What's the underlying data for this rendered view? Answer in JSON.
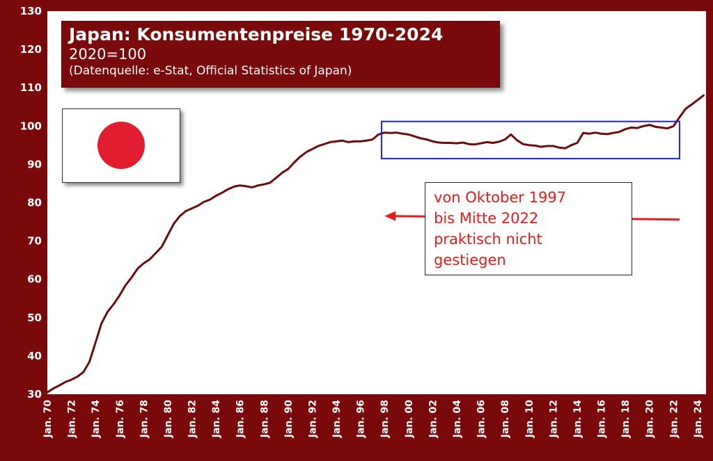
{
  "title": {
    "main": "Japan: Konsumentenpreise 1970-2024",
    "sub": "2020=100",
    "source": "(Datenquelle: e-Stat, Official Statistics of Japan)"
  },
  "note": {
    "lines": [
      "von Oktober 1997",
      "bis Mitte 2022",
      "praktisch nicht",
      "gestiegen"
    ]
  },
  "colors": {
    "frame": "#7a0a0a",
    "line": "#6b0c0c",
    "highlight_box": "#1f1fe0",
    "note_text": "#e41b1b",
    "arrow": "#e41b1b",
    "flag_disc": "#e01e30"
  },
  "flag_icon": "japan-flag-icon",
  "chart_data": {
    "type": "line",
    "title": "Japan: Konsumentenpreise 1970-2024",
    "subtitle": "2020=100",
    "xlabel": "",
    "ylabel": "",
    "xlim": [
      1970.0,
      2024.7
    ],
    "ylim": [
      30,
      130
    ],
    "yticks": [
      30,
      40,
      50,
      60,
      70,
      80,
      90,
      100,
      110,
      120,
      130
    ],
    "xticks": [
      {
        "x": 1970,
        "label": "Jan. 70"
      },
      {
        "x": 1972,
        "label": "Jan. 72"
      },
      {
        "x": 1974,
        "label": "Jan. 74"
      },
      {
        "x": 1976,
        "label": "Jan. 76"
      },
      {
        "x": 1978,
        "label": "Jan. 78"
      },
      {
        "x": 1980,
        "label": "Jan. 80"
      },
      {
        "x": 1982,
        "label": "Jan. 82"
      },
      {
        "x": 1984,
        "label": "Jan. 84"
      },
      {
        "x": 1986,
        "label": "Jan. 86"
      },
      {
        "x": 1988,
        "label": "Jan. 88"
      },
      {
        "x": 1990,
        "label": "Jan. 90"
      },
      {
        "x": 1992,
        "label": "Jan. 92"
      },
      {
        "x": 1994,
        "label": "Jan. 94"
      },
      {
        "x": 1996,
        "label": "Jan. 96"
      },
      {
        "x": 1998,
        "label": "Jan. 98"
      },
      {
        "x": 2000,
        "label": "Jan. 00"
      },
      {
        "x": 2002,
        "label": "Jan. 02"
      },
      {
        "x": 2004,
        "label": "Jan. 04"
      },
      {
        "x": 2006,
        "label": "Jan. 06"
      },
      {
        "x": 2008,
        "label": "Jan. 08"
      },
      {
        "x": 2010,
        "label": "Jan. 10"
      },
      {
        "x": 2012,
        "label": "Jan. 12"
      },
      {
        "x": 2014,
        "label": "Jan. 14"
      },
      {
        "x": 2016,
        "label": "Jan. 16"
      },
      {
        "x": 2018,
        "label": "Jan. 18"
      },
      {
        "x": 2020,
        "label": "Jan. 20"
      },
      {
        "x": 2022,
        "label": "Jan. 22"
      },
      {
        "x": 2024,
        "label": "Jan. 24"
      }
    ],
    "grid": false,
    "series": [
      {
        "values_xy": [
          [
            1970.0,
            30.5
          ],
          [
            1970.5,
            31.5
          ],
          [
            1971.0,
            32.3
          ],
          [
            1971.5,
            33.2
          ],
          [
            1972.0,
            33.8
          ],
          [
            1972.5,
            34.6
          ],
          [
            1973.0,
            35.8
          ],
          [
            1973.5,
            38.5
          ],
          [
            1974.0,
            43.5
          ],
          [
            1974.5,
            48.5
          ],
          [
            1975.0,
            51.5
          ],
          [
            1975.5,
            53.5
          ],
          [
            1976.0,
            55.8
          ],
          [
            1976.5,
            58.5
          ],
          [
            1977.0,
            60.5
          ],
          [
            1977.5,
            62.8
          ],
          [
            1978.0,
            64.2
          ],
          [
            1978.5,
            65.2
          ],
          [
            1979.0,
            66.8
          ],
          [
            1979.5,
            68.5
          ],
          [
            1980.0,
            71.5
          ],
          [
            1980.5,
            74.5
          ],
          [
            1981.0,
            76.5
          ],
          [
            1981.5,
            77.8
          ],
          [
            1982.0,
            78.5
          ],
          [
            1982.5,
            79.2
          ],
          [
            1983.0,
            80.2
          ],
          [
            1983.5,
            80.8
          ],
          [
            1984.0,
            81.8
          ],
          [
            1984.5,
            82.6
          ],
          [
            1985.0,
            83.5
          ],
          [
            1985.5,
            84.2
          ],
          [
            1986.0,
            84.5
          ],
          [
            1986.5,
            84.3
          ],
          [
            1987.0,
            84.0
          ],
          [
            1987.5,
            84.5
          ],
          [
            1988.0,
            84.8
          ],
          [
            1988.5,
            85.2
          ],
          [
            1989.0,
            86.5
          ],
          [
            1989.5,
            87.8
          ],
          [
            1990.0,
            88.8
          ],
          [
            1990.5,
            90.5
          ],
          [
            1991.0,
            92.0
          ],
          [
            1991.5,
            93.2
          ],
          [
            1992.0,
            94.0
          ],
          [
            1992.5,
            94.8
          ],
          [
            1993.0,
            95.3
          ],
          [
            1993.5,
            95.8
          ],
          [
            1994.0,
            96.0
          ],
          [
            1994.5,
            96.2
          ],
          [
            1995.0,
            95.8
          ],
          [
            1995.5,
            96.0
          ],
          [
            1996.0,
            96.0
          ],
          [
            1996.5,
            96.2
          ],
          [
            1997.0,
            96.5
          ],
          [
            1997.5,
            97.8
          ],
          [
            1998.0,
            98.3
          ],
          [
            1998.5,
            98.2
          ],
          [
            1999.0,
            98.3
          ],
          [
            1999.5,
            98.0
          ],
          [
            2000.0,
            97.8
          ],
          [
            2000.5,
            97.3
          ],
          [
            2001.0,
            96.8
          ],
          [
            2001.5,
            96.5
          ],
          [
            2002.0,
            96.0
          ],
          [
            2002.5,
            95.7
          ],
          [
            2003.0,
            95.6
          ],
          [
            2003.5,
            95.6
          ],
          [
            2004.0,
            95.5
          ],
          [
            2004.5,
            95.7
          ],
          [
            2005.0,
            95.3
          ],
          [
            2005.5,
            95.2
          ],
          [
            2006.0,
            95.5
          ],
          [
            2006.5,
            95.8
          ],
          [
            2007.0,
            95.6
          ],
          [
            2007.5,
            95.9
          ],
          [
            2008.0,
            96.5
          ],
          [
            2008.5,
            97.8
          ],
          [
            2009.0,
            96.3
          ],
          [
            2009.5,
            95.3
          ],
          [
            2010.0,
            95.0
          ],
          [
            2010.5,
            94.9
          ],
          [
            2011.0,
            94.6
          ],
          [
            2011.5,
            94.8
          ],
          [
            2012.0,
            94.8
          ],
          [
            2012.5,
            94.4
          ],
          [
            2013.0,
            94.2
          ],
          [
            2013.5,
            95.0
          ],
          [
            2014.0,
            95.6
          ],
          [
            2014.5,
            98.2
          ],
          [
            2015.0,
            98.0
          ],
          [
            2015.5,
            98.3
          ],
          [
            2016.0,
            98.0
          ],
          [
            2016.5,
            97.9
          ],
          [
            2017.0,
            98.2
          ],
          [
            2017.5,
            98.5
          ],
          [
            2018.0,
            99.2
          ],
          [
            2018.5,
            99.6
          ],
          [
            2019.0,
            99.5
          ],
          [
            2019.5,
            100.0
          ],
          [
            2020.0,
            100.3
          ],
          [
            2020.5,
            99.8
          ],
          [
            2021.0,
            99.6
          ],
          [
            2021.5,
            99.4
          ],
          [
            2022.0,
            100.0
          ],
          [
            2022.5,
            102.3
          ],
          [
            2023.0,
            104.5
          ],
          [
            2023.5,
            105.6
          ],
          [
            2024.0,
            106.8
          ],
          [
            2024.5,
            108.0
          ]
        ]
      }
    ],
    "annotations": {
      "highlight_box": {
        "x": [
          1997.75,
          2022.5
        ],
        "y": [
          91.5,
          101.2
        ]
      },
      "arrow": {
        "from": [
          2022.5,
          75.6
        ],
        "to": [
          1998.0,
          76.5
        ]
      }
    }
  }
}
